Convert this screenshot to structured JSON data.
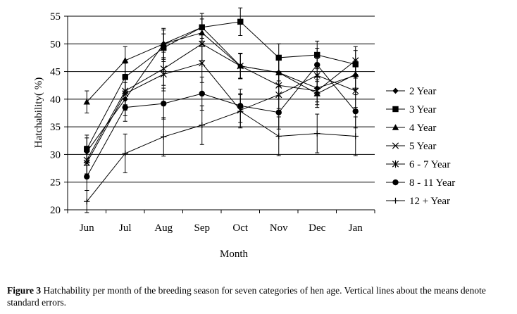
{
  "chart_data": {
    "type": "line",
    "title": "",
    "xlabel": "Month",
    "ylabel": "Hatchability( %)",
    "ylim": [
      20,
      55
    ],
    "yticks": [
      20,
      25,
      30,
      35,
      40,
      45,
      50,
      55
    ],
    "grid": "horizontal",
    "legend_position": "right",
    "categories": [
      "Jun",
      "Jul",
      "Aug",
      "Sep",
      "Oct",
      "Nov",
      "Dec",
      "Jan"
    ],
    "series": [
      {
        "name": "2 Year",
        "marker": "diamond",
        "values": [
          30.5,
          40.0,
          50.0,
          53.0,
          46.0,
          44.8,
          42.0,
          44.3
        ],
        "errors": [
          2.5,
          3.0,
          2.8,
          2.5,
          2.2,
          2.5,
          2.5,
          2.5
        ]
      },
      {
        "name": "3 Year",
        "marker": "square",
        "values": [
          31.0,
          44.0,
          49.3,
          53.0,
          54.0,
          47.5,
          48.0,
          46.3
        ],
        "errors": [
          2.5,
          2.5,
          2.5,
          2.0,
          2.5,
          2.5,
          2.5,
          2.5
        ]
      },
      {
        "name": "4 Year",
        "marker": "triangle",
        "values": [
          39.5,
          47.0,
          50.0,
          52.0,
          46.0,
          44.8,
          41.0,
          44.5
        ],
        "errors": [
          2.0,
          2.5,
          2.5,
          2.5,
          2.3,
          2.5,
          2.5,
          2.5
        ]
      },
      {
        "name": "5 Year",
        "marker": "x",
        "values": [
          29.0,
          41.5,
          45.5,
          50.0,
          46.0,
          42.5,
          41.5,
          47.0
        ],
        "errors": [
          2.5,
          2.5,
          3.0,
          3.0,
          2.3,
          2.5,
          2.5,
          2.5
        ]
      },
      {
        "name": "6 - 7 Year",
        "marker": "asterisk",
        "values": [
          28.5,
          41.0,
          44.5,
          46.5,
          38.0,
          40.8,
          44.3,
          41.5
        ],
        "errors": [
          2.5,
          3.0,
          3.0,
          3.5,
          3.0,
          2.5,
          3.0,
          3.0
        ]
      },
      {
        "name": "8 - 11 Year",
        "marker": "circle",
        "values": [
          26.0,
          38.5,
          39.2,
          41.0,
          38.8,
          37.6,
          46.2,
          37.8
        ],
        "errors": [
          2.5,
          2.5,
          2.8,
          3.0,
          3.0,
          3.0,
          3.0,
          3.0
        ]
      },
      {
        "name": "12 + Year",
        "marker": "plus",
        "values": [
          21.5,
          30.2,
          33.2,
          35.3,
          37.8,
          33.3,
          33.8,
          33.3
        ],
        "errors": [
          2.0,
          3.5,
          3.5,
          3.5,
          3.0,
          3.5,
          3.5,
          3.5
        ]
      }
    ]
  },
  "caption": {
    "label": "Figure 3",
    "text": " Hatchability per month of the breeding season for seven categories of hen age.  Vertical lines about the means denote standard errors."
  }
}
